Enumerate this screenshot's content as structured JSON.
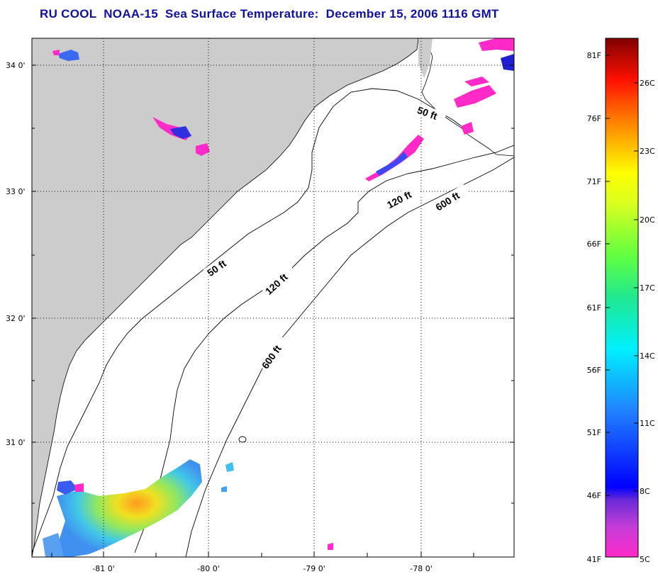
{
  "title": "RU COOL  NOAA-15  Sea Surface Temperature:  December 15, 2006 1116 GMT",
  "colors": {
    "title": "#1010a0",
    "land": "#cccccc",
    "grid": "#000000"
  },
  "map": {
    "lat_labels": [
      "34 0'",
      "33 0'",
      "32 0'",
      "31 0'"
    ],
    "lon_labels": [
      "-81 0'",
      "-80 0'",
      "-79 0'",
      "-78 0'"
    ],
    "contours": {
      "c50_north": "50 ft",
      "c120_north": "120 ft",
      "c600_north": "600 ft",
      "c50_south": "50 ft",
      "c120_south": "120 ft",
      "c600_south": "600 ft"
    }
  },
  "colorbar": {
    "fahrenheit": [
      "81F",
      "76F",
      "71F",
      "66F",
      "61F",
      "56F",
      "51F",
      "46F",
      "41F"
    ],
    "celsius": [
      "26C",
      "23C",
      "20C",
      "17C",
      "14C",
      "11C",
      "8C",
      "5C"
    ]
  }
}
